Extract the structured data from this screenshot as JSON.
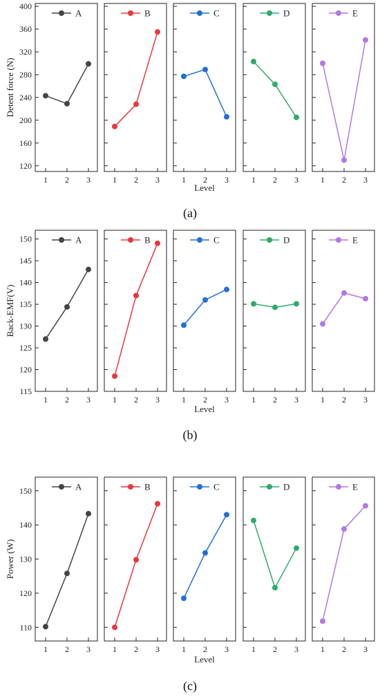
{
  "colors": {
    "A": "#444444",
    "B": "#e8383d",
    "C": "#2170d8",
    "D": "#2eaa6c",
    "E": "#b277e8"
  },
  "chart_data": [
    {
      "type": "line",
      "caption": "(a)",
      "ylabel": "Detent force (N)",
      "xlabel": "Level",
      "x": [
        1,
        2,
        3
      ],
      "ylim": [
        110,
        405
      ],
      "yticks": [
        120,
        160,
        200,
        240,
        280,
        320,
        360,
        400
      ],
      "show_yticklabels_all": false,
      "series": [
        {
          "name": "A",
          "values": [
            243,
            229,
            299
          ]
        },
        {
          "name": "B",
          "values": [
            189,
            228,
            355
          ]
        },
        {
          "name": "C",
          "values": [
            277,
            289,
            206
          ]
        },
        {
          "name": "D",
          "values": [
            303,
            263,
            205
          ]
        },
        {
          "name": "E",
          "values": [
            300,
            130,
            341
          ]
        }
      ]
    },
    {
      "type": "line",
      "caption": "(b)",
      "ylabel": "Back-EMF(V)",
      "xlabel": "Level",
      "x": [
        1,
        2,
        3
      ],
      "ylim": [
        115,
        152
      ],
      "yticks": [
        115,
        120,
        125,
        130,
        135,
        140,
        145,
        150
      ],
      "show_yticklabels_all": false,
      "series": [
        {
          "name": "A",
          "values": [
            127,
            134.4,
            143
          ]
        },
        {
          "name": "B",
          "values": [
            118.5,
            137,
            149
          ]
        },
        {
          "name": "C",
          "values": [
            130.2,
            136,
            138.4
          ]
        },
        {
          "name": "D",
          "values": [
            135.1,
            134.3,
            135.1
          ]
        },
        {
          "name": "E",
          "values": [
            130.5,
            137.6,
            136.3
          ]
        }
      ]
    },
    {
      "type": "line",
      "caption": "(c)",
      "ylabel": "Power (W)",
      "xlabel": "Level",
      "x": [
        1,
        2,
        3
      ],
      "ylim": [
        106,
        154
      ],
      "yticks": [
        110,
        120,
        130,
        140,
        150
      ],
      "show_yticklabels_all": false,
      "series": [
        {
          "name": "A",
          "values": [
            110.2,
            125.8,
            143.3
          ]
        },
        {
          "name": "B",
          "values": [
            110,
            129.8,
            146.2
          ]
        },
        {
          "name": "C",
          "values": [
            118.5,
            131.8,
            143
          ]
        },
        {
          "name": "D",
          "values": [
            141.3,
            121.6,
            133.2
          ]
        },
        {
          "name": "E",
          "values": [
            111.8,
            138.8,
            145.6
          ]
        }
      ]
    }
  ]
}
